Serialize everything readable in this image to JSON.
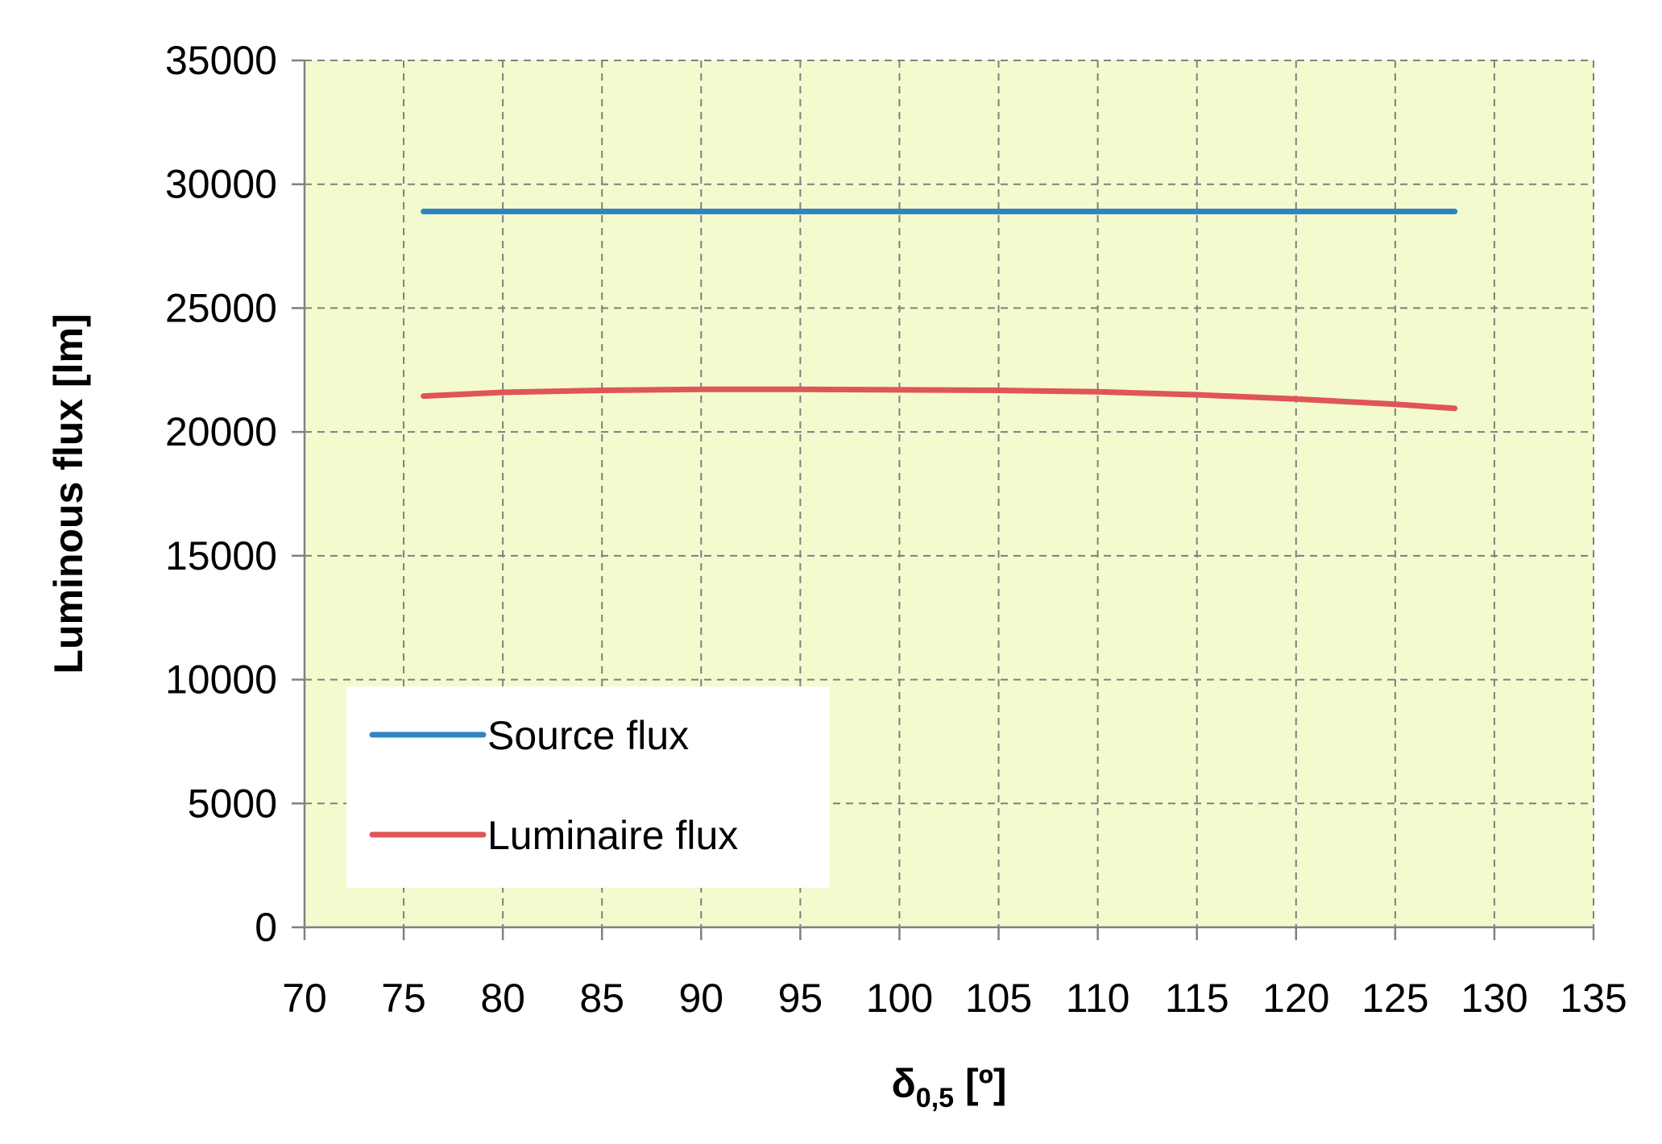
{
  "chart_data": {
    "type": "line",
    "title": "",
    "xlabel": "δ",
    "xlabel_sub": "0,5",
    "xlabel_unit": " [º]",
    "ylabel": "Luminous flux [lm]",
    "xlim": [
      70,
      135
    ],
    "ylim": [
      0,
      35000
    ],
    "x_ticks": [
      "70",
      "75",
      "80",
      "85",
      "90",
      "95",
      "100",
      "105",
      "110",
      "115",
      "120",
      "125",
      "130",
      "135"
    ],
    "y_ticks": [
      "0",
      "5000",
      "10000",
      "15000",
      "20000",
      "25000",
      "30000",
      "35000"
    ],
    "grid": true,
    "legend_position": "lower-left",
    "plot_background": "#f3fbce",
    "series": [
      {
        "name": "Source flux",
        "color": "#2e86c1",
        "x": [
          76,
          128
        ],
        "y": [
          28900,
          28900
        ]
      },
      {
        "name": "Luminaire flux",
        "color": "#e05555",
        "x": [
          76,
          80,
          85,
          90,
          95,
          100,
          105,
          110,
          115,
          120,
          125,
          128
        ],
        "y": [
          21450,
          21600,
          21680,
          21720,
          21720,
          21700,
          21680,
          21620,
          21500,
          21330,
          21120,
          20950
        ]
      }
    ]
  }
}
